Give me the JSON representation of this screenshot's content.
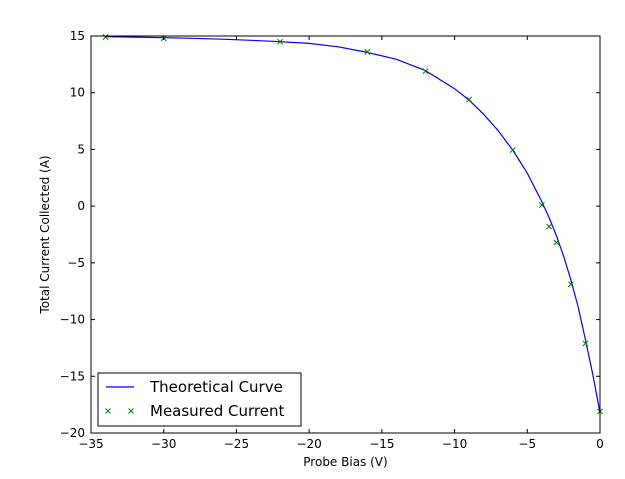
{
  "chart_data": {
    "type": "line",
    "title": "",
    "xlabel": "Probe Bias (V)",
    "ylabel": "Total Current Collected (A)",
    "xlim": [
      -35,
      0
    ],
    "ylim": [
      -20,
      15
    ],
    "xticks": [
      -35,
      -30,
      -25,
      -20,
      -15,
      -10,
      -5,
      0
    ],
    "yticks": [
      -20,
      -15,
      -10,
      -5,
      0,
      5,
      10,
      15
    ],
    "xtick_labels": [
      "−35",
      "−30",
      "−25",
      "−20",
      "−15",
      "−10",
      "−5",
      "0"
    ],
    "ytick_labels": [
      "−20",
      "−15",
      "−10",
      "−5",
      "0",
      "5",
      "10",
      "15"
    ],
    "grid": false,
    "legend_position": "bottom-left",
    "series": [
      {
        "name": "Theoretical Curve",
        "style": "line",
        "color": "#0000ff",
        "x": [
          -34,
          -32,
          -30,
          -28,
          -26,
          -24,
          -22,
          -20,
          -18,
          -16,
          -14,
          -12,
          -10,
          -9,
          -8,
          -7,
          -6,
          -5,
          -4,
          -3.5,
          -3,
          -2.5,
          -2,
          -1.5,
          -1,
          -0.5,
          0
        ],
        "y": [
          14.95,
          14.9,
          14.85,
          14.8,
          14.72,
          14.62,
          14.5,
          14.35,
          14.05,
          13.55,
          12.95,
          11.95,
          10.35,
          9.35,
          8.1,
          6.65,
          4.95,
          2.9,
          0.4,
          -1.0,
          -2.6,
          -4.4,
          -6.5,
          -8.9,
          -11.8,
          -14.8,
          -18.2
        ]
      },
      {
        "name": "Measured Current",
        "style": "marker",
        "marker": "x",
        "color": "#008000",
        "x": [
          -34,
          -30,
          -22,
          -16,
          -12,
          -9,
          -6,
          -4,
          -3.5,
          -3,
          -2,
          -1,
          0
        ],
        "y": [
          14.9,
          14.8,
          14.5,
          13.6,
          11.9,
          9.4,
          4.95,
          0.1,
          -1.8,
          -3.2,
          -6.9,
          -12.1,
          -18.1
        ]
      }
    ]
  }
}
